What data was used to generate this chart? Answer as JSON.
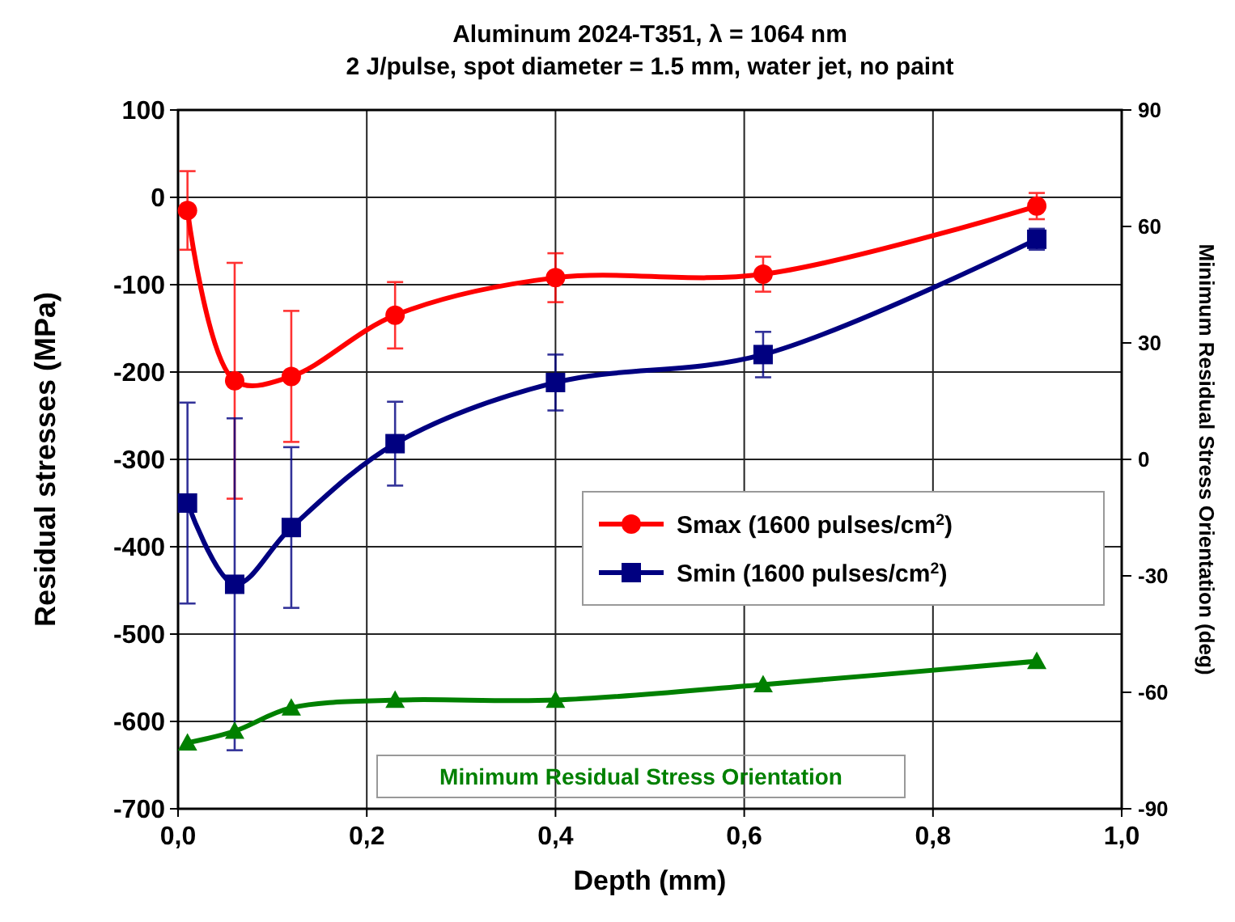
{
  "chart_data": {
    "type": "line",
    "title": "Aluminum 2024-T351, λ = 1064 nm",
    "subtitle": "2 J/pulse, spot diameter = 1.5 mm, water jet, no paint",
    "xlabel": "Depth (mm)",
    "ylabel": "Residual stresses (MPa)",
    "y2label": "Minimum Residual Stress Orientation (deg)",
    "x": [
      0.01,
      0.06,
      0.12,
      0.23,
      0.4,
      0.62,
      0.91
    ],
    "series": [
      {
        "name": "Smax (1600 pulses/cm$^{2}$)",
        "color": "#ff0000",
        "marker": "circle",
        "values": [
          -15,
          -210,
          -205,
          -135,
          -92,
          -88,
          -10
        ],
        "errors": [
          45,
          135,
          75,
          38,
          28,
          20,
          15
        ]
      },
      {
        "name": "Smin (1600 pulses/cm$^{2}$)",
        "color": "#000080",
        "marker": "square",
        "values": [
          -350,
          -443,
          -378,
          -282,
          -212,
          -180,
          -48
        ],
        "errors": [
          115,
          190,
          92,
          48,
          32,
          26,
          12
        ]
      },
      {
        "name": "Minimum Residual Stress Orientation",
        "color": "#008000",
        "marker": "triangle",
        "axis": "y2",
        "values": [
          -73,
          -70,
          -64,
          -62,
          -62,
          -58,
          -52
        ]
      }
    ],
    "xlim": [
      0,
      1
    ],
    "xticks": [
      {
        "value": 0,
        "label": "0,0"
      },
      {
        "value": 0.2,
        "label": "0,2"
      },
      {
        "value": 0.4,
        "label": "0,4"
      },
      {
        "value": 0.6,
        "label": "0,6"
      },
      {
        "value": 0.8,
        "label": "0,8"
      },
      {
        "value": 1,
        "label": "1,0"
      }
    ],
    "ylim": [
      -700,
      100
    ],
    "yticks": [
      -700,
      -600,
      -500,
      -400,
      -300,
      -200,
      -100,
      0,
      100
    ],
    "y2lim": [
      -90,
      90
    ],
    "y2ticks": [
      -90,
      -60,
      -30,
      0,
      30,
      60,
      90
    ],
    "grid": true,
    "legend": "right",
    "line_style": "solid"
  }
}
